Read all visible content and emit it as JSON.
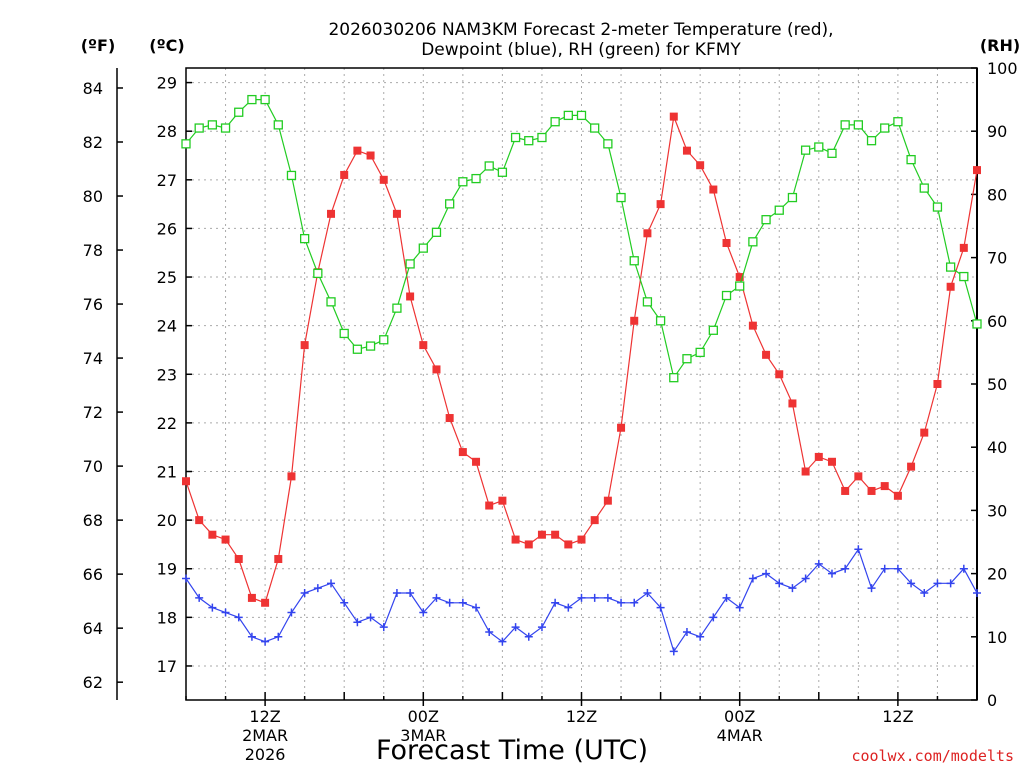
{
  "chart_data": {
    "type": "line",
    "title_line1": "2026030206 NAM3KM Forecast 2-meter Temperature (red),",
    "title_line2": "Dewpoint (blue), RH (green) for KFMY",
    "xlabel": "Forecast Time (UTC)",
    "watermark": "coolwx.com/modelts",
    "unit_f": "(ºF)",
    "unit_c": "(ºC)",
    "unit_rh": "(RH)",
    "x_hours": [
      0,
      1,
      2,
      3,
      4,
      5,
      6,
      7,
      8,
      9,
      10,
      11,
      12,
      13,
      14,
      15,
      16,
      17,
      18,
      19,
      20,
      21,
      22,
      23,
      24,
      25,
      26,
      27,
      28,
      29,
      30,
      31,
      32,
      33,
      34,
      35,
      36,
      37,
      38,
      39,
      40,
      41,
      42,
      43,
      44,
      45,
      46,
      47,
      48,
      49,
      50,
      51,
      52,
      53,
      54,
      55,
      56,
      57,
      58,
      59,
      60
    ],
    "x_range": [
      0,
      60
    ],
    "c_range": [
      16.3,
      29.3
    ],
    "rh_range": [
      0,
      100
    ],
    "x_ticks": [
      {
        "hour": 6,
        "l1": "12Z",
        "l2": "2MAR",
        "l3": "2026"
      },
      {
        "hour": 18,
        "l1": "00Z",
        "l2": "3MAR",
        "l3": ""
      },
      {
        "hour": 30,
        "l1": "12Z",
        "l2": "",
        "l3": ""
      },
      {
        "hour": 42,
        "l1": "00Z",
        "l2": "4MAR",
        "l3": ""
      },
      {
        "hour": 54,
        "l1": "12Z",
        "l2": "",
        "l3": ""
      }
    ],
    "f_ticks": [
      62,
      64,
      66,
      68,
      70,
      72,
      74,
      76,
      78,
      80,
      82,
      84
    ],
    "c_ticks": [
      17,
      18,
      19,
      20,
      21,
      22,
      23,
      24,
      25,
      26,
      27,
      28,
      29
    ],
    "rh_ticks": [
      0,
      10,
      20,
      30,
      40,
      50,
      60,
      70,
      80,
      90,
      100
    ],
    "series": [
      {
        "name": "Temperature",
        "unit": "C",
        "color": "#ee3333",
        "marker": "filled-square",
        "values": [
          20.8,
          20.0,
          19.7,
          19.6,
          19.2,
          18.4,
          18.3,
          19.2,
          20.9,
          23.6,
          25.1,
          26.3,
          27.1,
          27.6,
          27.5,
          27.0,
          26.3,
          24.6,
          23.6,
          23.1,
          22.1,
          21.4,
          21.2,
          20.3,
          20.4,
          19.6,
          19.5,
          19.7,
          19.7,
          19.5,
          19.6,
          20.0,
          20.4,
          21.9,
          24.1,
          25.9,
          26.5,
          28.3,
          27.6,
          27.3,
          26.8,
          25.7,
          25.0,
          24.0,
          23.4,
          23.0,
          22.4,
          21.0,
          21.3,
          21.2,
          20.6,
          20.9,
          20.6,
          20.7,
          20.5,
          21.1,
          21.8,
          22.8,
          24.8,
          25.6,
          27.2
        ]
      },
      {
        "name": "Dewpoint",
        "unit": "C",
        "color": "#3344ee",
        "marker": "plus",
        "values": [
          18.8,
          18.4,
          18.2,
          18.1,
          18.0,
          17.6,
          17.5,
          17.6,
          18.1,
          18.5,
          18.6,
          18.7,
          18.3,
          17.9,
          18.0,
          17.8,
          18.5,
          18.5,
          18.1,
          18.4,
          18.3,
          18.3,
          18.2,
          17.7,
          17.5,
          17.8,
          17.6,
          17.8,
          18.3,
          18.2,
          18.4,
          18.4,
          18.4,
          18.3,
          18.3,
          18.5,
          18.2,
          17.3,
          17.7,
          17.6,
          18.0,
          18.4,
          18.2,
          18.8,
          18.9,
          18.7,
          18.6,
          18.8,
          19.1,
          18.9,
          19.0,
          19.4,
          18.6,
          19.0,
          19.0,
          18.7,
          18.5,
          18.7,
          18.7,
          19.0,
          18.5
        ]
      },
      {
        "name": "RH",
        "unit": "%",
        "color": "#22cc22",
        "marker": "open-square",
        "values": [
          88,
          90.5,
          91,
          90.5,
          93,
          95,
          95,
          91,
          83,
          73,
          67.5,
          63,
          58,
          55.5,
          56,
          57,
          62,
          69,
          71.5,
          74,
          78.5,
          82,
          82.5,
          84.5,
          83.5,
          89,
          88.5,
          89,
          91.5,
          92.5,
          92.5,
          90.5,
          88,
          79.5,
          69.5,
          63,
          60,
          51,
          54,
          55,
          58.5,
          64,
          65.5,
          72.5,
          76,
          77.5,
          79.5,
          87,
          87.5,
          86.5,
          91,
          91,
          88.5,
          90.5,
          91.5,
          85.5,
          81,
          78,
          68.5,
          67,
          59.5
        ]
      }
    ]
  }
}
